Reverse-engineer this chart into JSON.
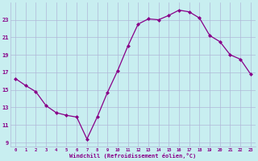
{
  "x": [
    0,
    1,
    2,
    3,
    4,
    5,
    6,
    7,
    8,
    9,
    10,
    11,
    12,
    13,
    14,
    15,
    16,
    17,
    18,
    19,
    20,
    21,
    22,
    23
  ],
  "y": [
    16.3,
    15.5,
    14.8,
    13.2,
    12.4,
    12.1,
    11.9,
    9.4,
    11.9,
    14.7,
    17.2,
    20.0,
    22.5,
    23.1,
    23.0,
    23.5,
    24.1,
    23.9,
    23.2,
    21.2,
    20.5,
    19.0,
    18.5,
    16.8
  ],
  "line_color": "#880088",
  "marker": "D",
  "markersize": 2.0,
  "linewidth": 0.9,
  "background_color": "#c8eef0",
  "grid_color": "#b0b8d8",
  "xlabel": "Windchill (Refroidissement éolien,°C)",
  "xlabel_color": "#880088",
  "tick_color": "#880088",
  "yticks": [
    9,
    11,
    13,
    15,
    17,
    19,
    21,
    23
  ],
  "xticks": [
    0,
    1,
    2,
    3,
    4,
    5,
    6,
    7,
    8,
    9,
    10,
    11,
    12,
    13,
    14,
    15,
    16,
    17,
    18,
    19,
    20,
    21,
    22,
    23
  ],
  "ylim": [
    8.5,
    25.0
  ],
  "xlim": [
    -0.5,
    23.5
  ]
}
